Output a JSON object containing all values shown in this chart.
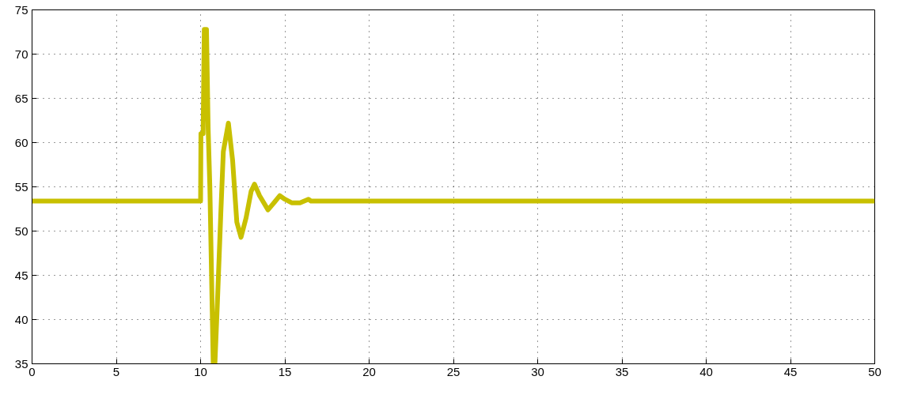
{
  "chart_data": {
    "type": "line",
    "x": [
      0,
      10,
      10.02,
      10.15,
      10.22,
      10.35,
      10.45,
      10.55,
      10.75,
      10.85,
      11.0,
      11.2,
      11.35,
      11.65,
      11.9,
      12.15,
      12.4,
      12.7,
      13.0,
      13.2,
      13.5,
      14.0,
      14.4,
      14.7,
      15.0,
      15.4,
      15.9,
      16.4,
      16.55,
      50
    ],
    "series": [
      {
        "color": "#c8c000",
        "values": [
          53.4,
          53.4,
          61,
          61,
          72.8,
          72.8,
          61.5,
          55,
          35,
          35,
          42,
          52,
          59,
          62.2,
          58,
          51,
          49.3,
          51.5,
          54.5,
          55.3,
          54,
          52.4,
          53.3,
          54.0,
          53.6,
          53.2,
          53.2,
          53.6,
          53.4,
          53.4
        ]
      }
    ],
    "xlim": [
      0,
      50
    ],
    "xticks": [
      0,
      5,
      10,
      15,
      20,
      25,
      30,
      35,
      40,
      45,
      50
    ],
    "ylim": [
      35,
      75
    ],
    "yticks": [
      35,
      40,
      45,
      50,
      55,
      60,
      65,
      70,
      75
    ],
    "grid": true,
    "line_style": "solid",
    "marker": "none"
  }
}
